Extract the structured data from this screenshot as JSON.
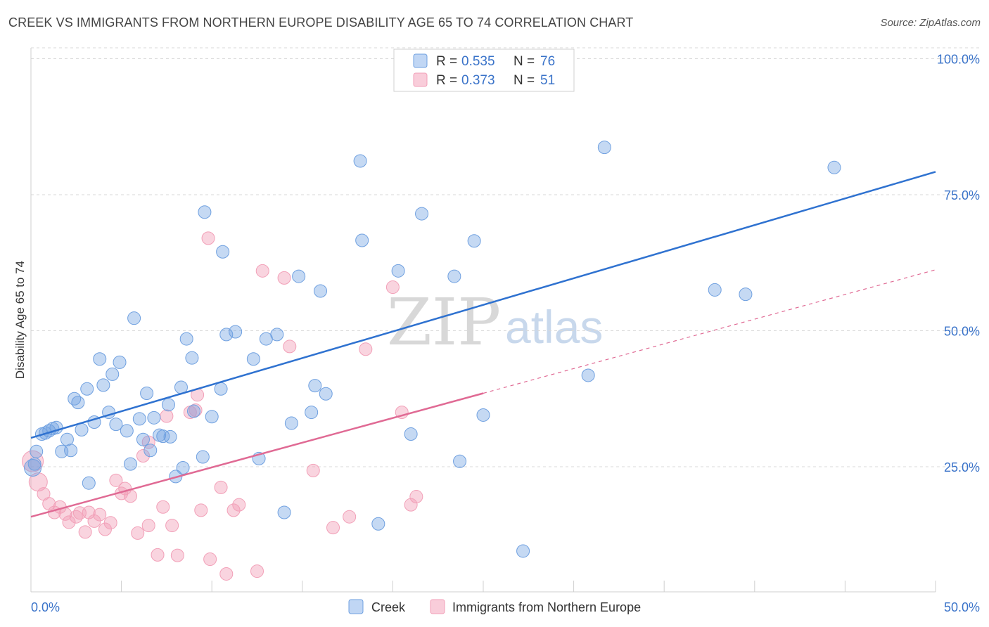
{
  "title": "CREEK VS IMMIGRANTS FROM NORTHERN EUROPE DISABILITY AGE 65 TO 74 CORRELATION CHART",
  "source": "Source: ZipAtlas.com",
  "watermark": {
    "zip": "ZIP",
    "atlas": "atlas"
  },
  "legend": {
    "rows": [
      {
        "r_label": "R =",
        "r_value": "0.535",
        "n_label": "N =",
        "n_value": "76"
      },
      {
        "r_label": "R =",
        "r_value": "0.373",
        "n_label": "N =",
        "n_value": "51"
      }
    ]
  },
  "bottom_legend": [
    "Creek",
    "Immigrants from Northern Europe"
  ],
  "colors": {
    "creek": "#6fa0e0",
    "creek_line": "#2f72d0",
    "immigrants": "#f2a0b8",
    "immigrants_line": "#e06a94",
    "tick": "#3a73c9",
    "grid": "#d9d9d9"
  },
  "chart_data": {
    "type": "scatter",
    "title": "CREEK VS IMMIGRANTS FROM NORTHERN EUROPE DISABILITY AGE 65 TO 74 CORRELATION CHART",
    "xlabel": "",
    "ylabel": "Disability Age 65 to 74",
    "xlim": [
      0,
      50
    ],
    "ylim": [
      2,
      102
    ],
    "x_tick_labels": [
      "0.0%",
      "50.0%"
    ],
    "y_ticks": [
      25,
      50,
      75,
      100
    ],
    "y_tick_labels": [
      "25.0%",
      "50.0%",
      "75.0%",
      "100.0%"
    ],
    "grid": true,
    "legend_position": "top-center",
    "series": [
      {
        "name": "Creek",
        "color": "#6fa0e0",
        "trend": {
          "x0": 0,
          "y0": 30.3,
          "x1": 50,
          "y1": 79.2,
          "dashed_from": null
        },
        "points": [
          [
            0.2,
            25.5
          ],
          [
            0.3,
            27.8
          ],
          [
            0.6,
            31.0
          ],
          [
            0.8,
            31.2
          ],
          [
            1.0,
            31.6
          ],
          [
            1.2,
            32.0
          ],
          [
            1.4,
            32.2
          ],
          [
            1.7,
            27.8
          ],
          [
            2.0,
            30.0
          ],
          [
            2.2,
            28.0
          ],
          [
            2.4,
            37.5
          ],
          [
            2.6,
            36.8
          ],
          [
            2.8,
            31.8
          ],
          [
            3.1,
            39.3
          ],
          [
            3.2,
            22.0
          ],
          [
            3.5,
            33.2
          ],
          [
            3.8,
            44.8
          ],
          [
            4.0,
            40.0
          ],
          [
            4.3,
            35.0
          ],
          [
            4.5,
            42.0
          ],
          [
            4.7,
            32.8
          ],
          [
            4.9,
            44.2
          ],
          [
            5.3,
            31.6
          ],
          [
            5.5,
            25.5
          ],
          [
            5.7,
            52.3
          ],
          [
            6.0,
            33.8
          ],
          [
            6.2,
            30.0
          ],
          [
            6.4,
            38.5
          ],
          [
            6.6,
            28.0
          ],
          [
            6.8,
            34.0
          ],
          [
            7.1,
            30.8
          ],
          [
            7.3,
            30.6
          ],
          [
            7.7,
            30.5
          ],
          [
            7.6,
            36.4
          ],
          [
            8.0,
            23.2
          ],
          [
            8.3,
            39.6
          ],
          [
            8.4,
            24.8
          ],
          [
            8.6,
            48.5
          ],
          [
            8.9,
            45.0
          ],
          [
            9.0,
            35.2
          ],
          [
            9.5,
            26.8
          ],
          [
            9.6,
            71.8
          ],
          [
            10.0,
            34.2
          ],
          [
            10.5,
            39.3
          ],
          [
            10.6,
            64.5
          ],
          [
            10.8,
            49.3
          ],
          [
            11.3,
            49.8
          ],
          [
            12.3,
            44.8
          ],
          [
            12.6,
            26.5
          ],
          [
            13.0,
            48.5
          ],
          [
            13.6,
            49.3
          ],
          [
            14.0,
            16.6
          ],
          [
            14.4,
            33.0
          ],
          [
            14.8,
            60.0
          ],
          [
            15.5,
            35.0
          ],
          [
            15.7,
            39.9
          ],
          [
            16.0,
            57.3
          ],
          [
            16.3,
            38.4
          ],
          [
            18.2,
            81.2
          ],
          [
            18.3,
            66.6
          ],
          [
            19.2,
            14.5
          ],
          [
            20.3,
            61.0
          ],
          [
            21.0,
            31.0
          ],
          [
            21.6,
            71.5
          ],
          [
            23.4,
            60.0
          ],
          [
            23.7,
            26.0
          ],
          [
            24.5,
            66.5
          ],
          [
            25.0,
            34.5
          ],
          [
            26.1,
            100.0
          ],
          [
            27.2,
            9.5
          ],
          [
            30.8,
            41.8
          ],
          [
            31.7,
            83.7
          ],
          [
            37.8,
            57.5
          ],
          [
            39.5,
            56.7
          ],
          [
            44.4,
            80.0
          ],
          [
            0.1,
            24.8
          ]
        ]
      },
      {
        "name": "Immigrants from Northern Europe",
        "color": "#f2a0b8",
        "trend": {
          "x0": 0,
          "y0": 15.8,
          "x1": 25,
          "y1": 38.5,
          "dashed_to_x": 50,
          "dashed_to_y": 61.2
        },
        "points": [
          [
            0.1,
            26.0
          ],
          [
            0.4,
            22.2
          ],
          [
            0.7,
            20.0
          ],
          [
            1.0,
            18.2
          ],
          [
            1.3,
            16.6
          ],
          [
            1.6,
            17.6
          ],
          [
            1.9,
            16.3
          ],
          [
            2.1,
            14.8
          ],
          [
            2.5,
            15.8
          ],
          [
            2.7,
            16.5
          ],
          [
            3.0,
            13.0
          ],
          [
            3.2,
            16.6
          ],
          [
            3.5,
            15.0
          ],
          [
            3.8,
            16.2
          ],
          [
            4.1,
            13.5
          ],
          [
            4.4,
            14.7
          ],
          [
            4.7,
            22.5
          ],
          [
            5.0,
            20.1
          ],
          [
            5.2,
            21.0
          ],
          [
            5.5,
            19.6
          ],
          [
            5.9,
            12.8
          ],
          [
            6.2,
            27.0
          ],
          [
            6.5,
            14.2
          ],
          [
            6.5,
            29.5
          ],
          [
            7.0,
            8.8
          ],
          [
            7.3,
            17.6
          ],
          [
            7.5,
            34.3
          ],
          [
            7.8,
            14.2
          ],
          [
            8.1,
            8.7
          ],
          [
            8.8,
            35.0
          ],
          [
            9.2,
            38.2
          ],
          [
            9.4,
            17.0
          ],
          [
            9.8,
            67.0
          ],
          [
            9.9,
            8.0
          ],
          [
            10.5,
            21.2
          ],
          [
            10.8,
            5.3
          ],
          [
            11.2,
            17.0
          ],
          [
            11.5,
            18.0
          ],
          [
            12.5,
            5.8
          ],
          [
            12.8,
            61.0
          ],
          [
            14.0,
            59.7
          ],
          [
            14.3,
            47.1
          ],
          [
            15.6,
            24.3
          ],
          [
            16.7,
            13.8
          ],
          [
            17.6,
            15.8
          ],
          [
            18.5,
            46.6
          ],
          [
            20.0,
            58.0
          ],
          [
            20.5,
            35.0
          ],
          [
            21.0,
            18.0
          ],
          [
            21.3,
            19.5
          ],
          [
            9.1,
            35.4
          ]
        ]
      }
    ]
  }
}
